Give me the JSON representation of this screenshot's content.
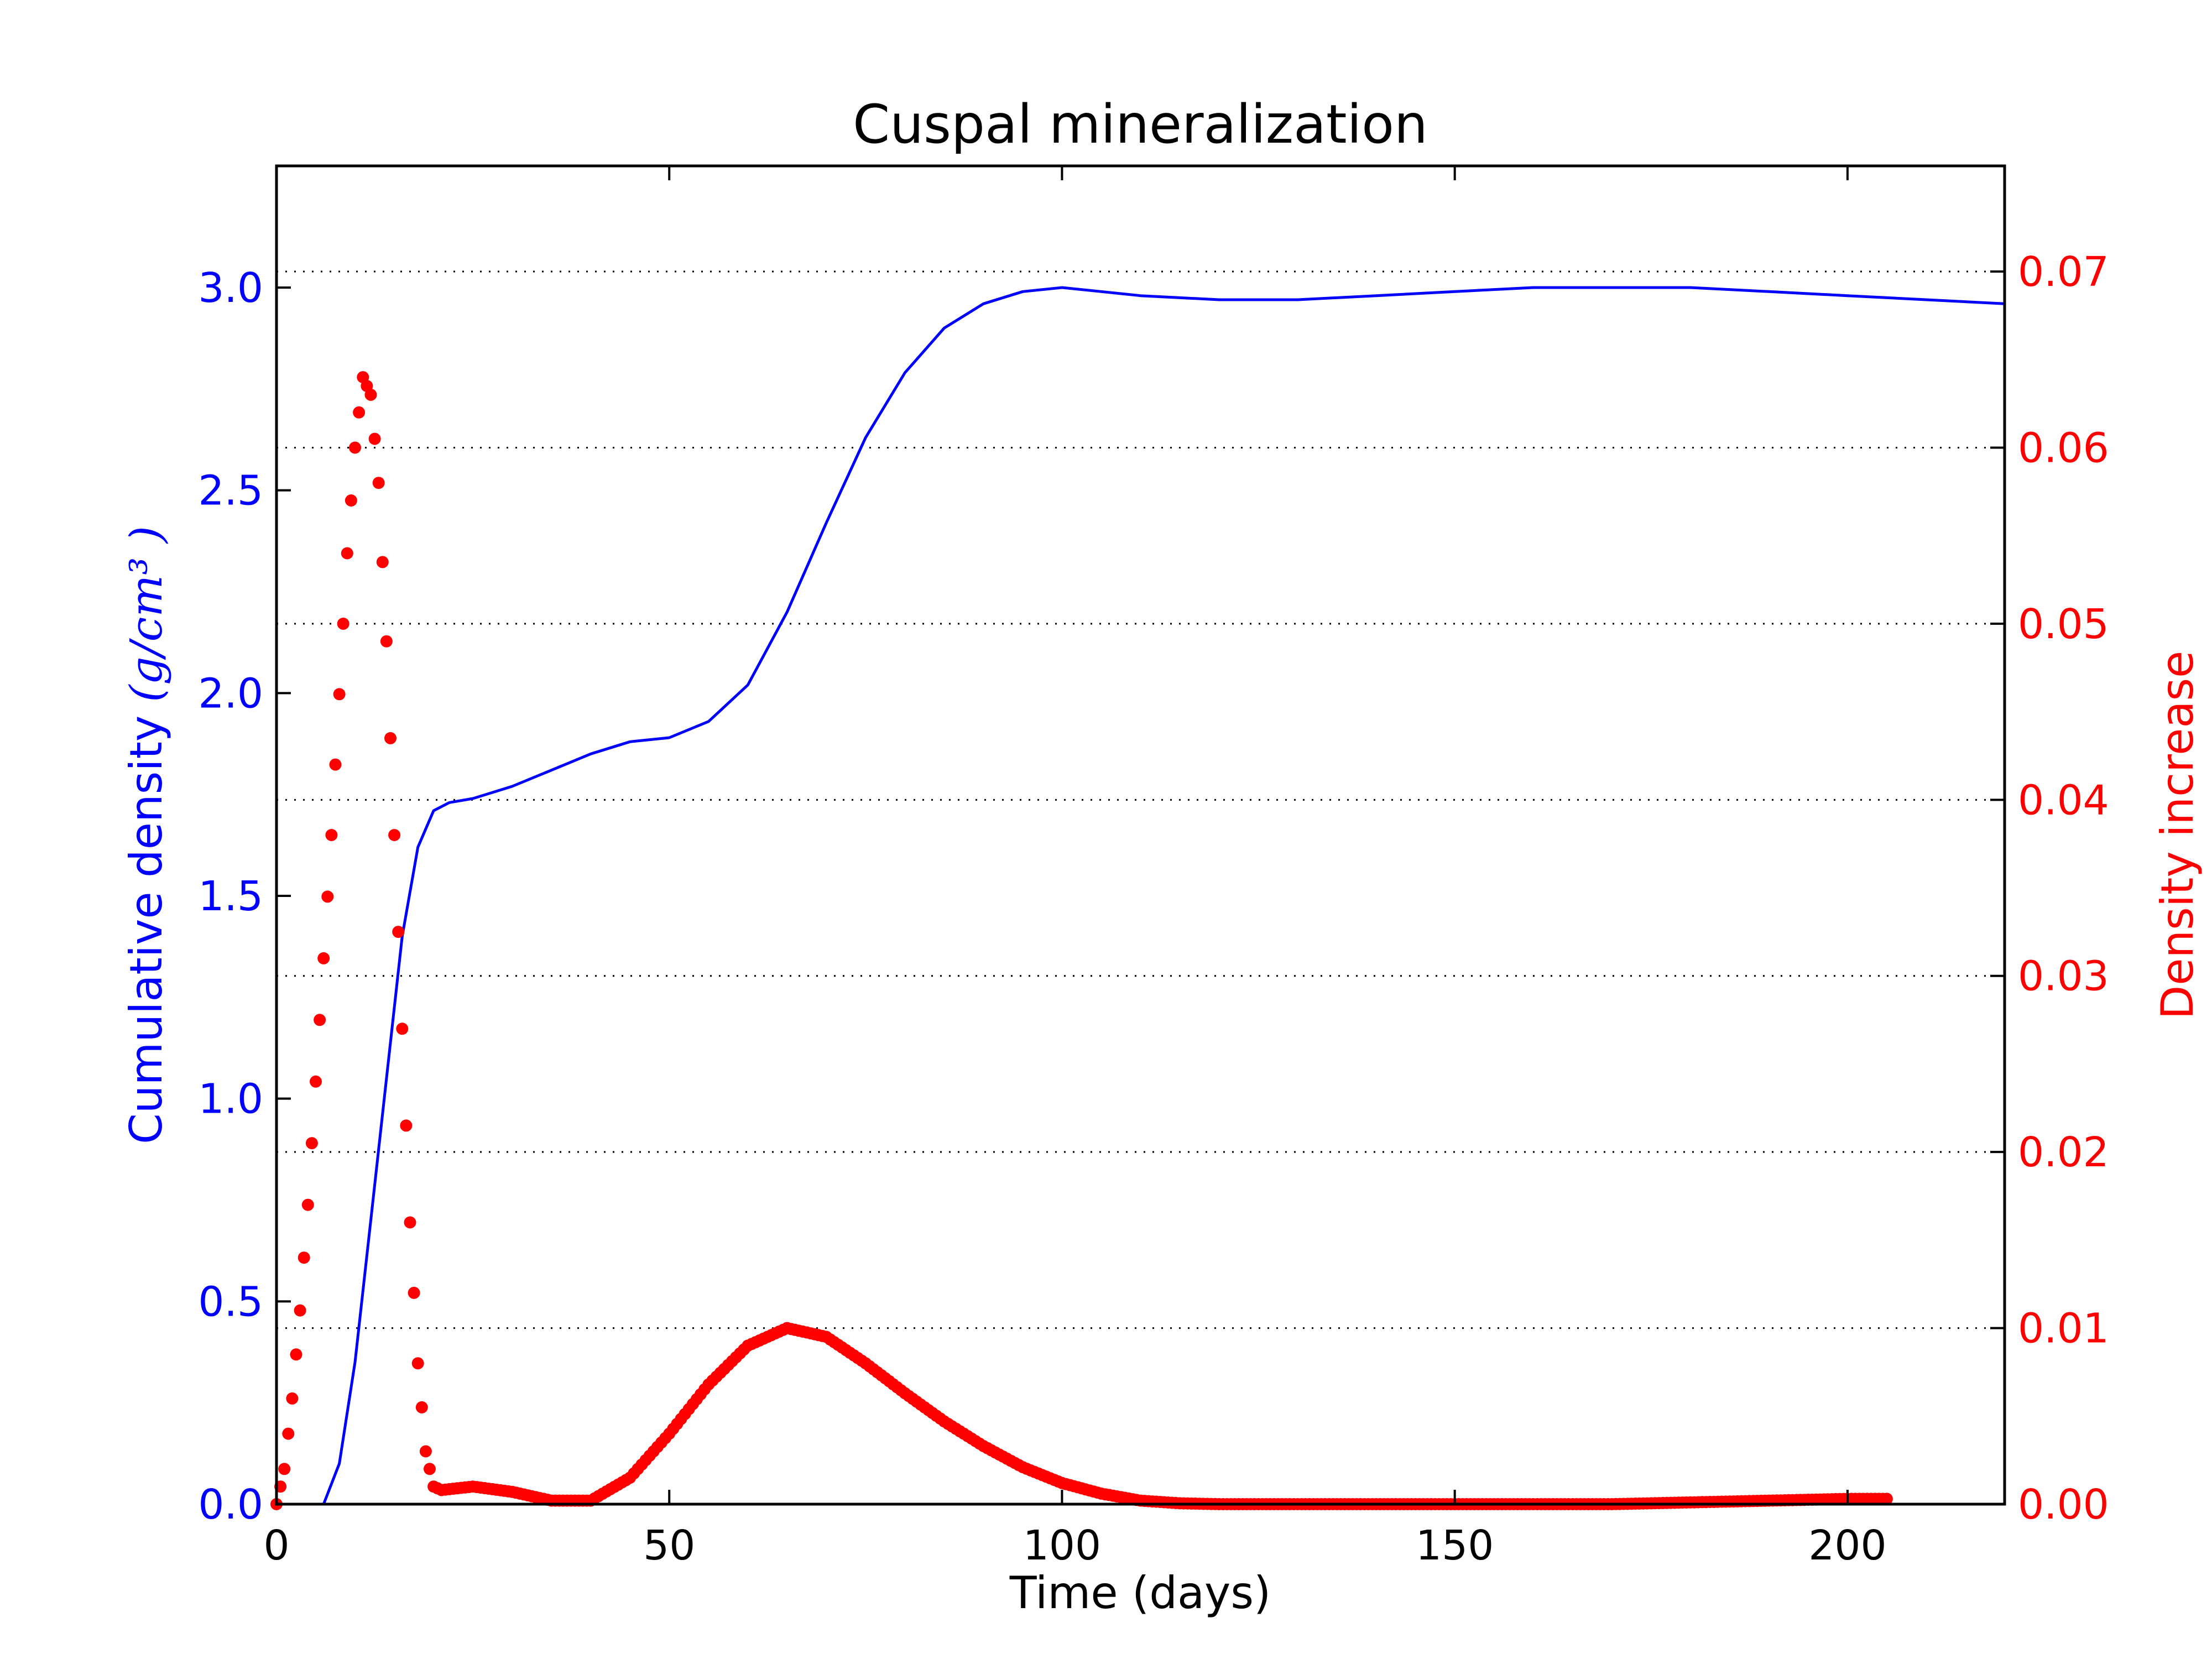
{
  "chart_data": {
    "type": "line",
    "title": "Cuspal mineralization",
    "xlabel": "Time (days)",
    "ylabel_left": "Cumulative density",
    "ylabel_left_unit": "(g/cm³ )",
    "ylabel_right": "Density increase",
    "xlim": [
      0,
      220
    ],
    "ylim_left": [
      0,
      3.3
    ],
    "ylim_right": [
      0,
      0.076
    ],
    "x_ticks": [
      "0",
      "50",
      "100",
      "150",
      "200"
    ],
    "y_left_ticks": [
      "0.0",
      "0.5",
      "1.0",
      "1.5",
      "2.0",
      "2.5",
      "3.0"
    ],
    "y_right_ticks": [
      "0.00",
      "0.01",
      "0.02",
      "0.03",
      "0.04",
      "0.05",
      "0.06",
      "0.07"
    ],
    "grid": "horizontal-dotted-right-axis",
    "colors": {
      "left": "#0000ff",
      "right": "#ff0000",
      "axes": "#000000",
      "grid": "#000000"
    },
    "series": [
      {
        "axis": "left",
        "style": "solid-line",
        "points": [
          [
            6,
            0
          ],
          [
            8,
            0.1
          ],
          [
            10,
            0.35
          ],
          [
            12,
            0.7
          ],
          [
            14,
            1.05
          ],
          [
            16,
            1.4
          ],
          [
            18,
            1.62
          ],
          [
            20,
            1.71
          ],
          [
            22,
            1.73
          ],
          [
            25,
            1.74
          ],
          [
            30,
            1.77
          ],
          [
            35,
            1.81
          ],
          [
            40,
            1.85
          ],
          [
            45,
            1.88
          ],
          [
            50,
            1.89
          ],
          [
            55,
            1.93
          ],
          [
            60,
            2.02
          ],
          [
            65,
            2.2
          ],
          [
            70,
            2.42
          ],
          [
            75,
            2.63
          ],
          [
            80,
            2.79
          ],
          [
            85,
            2.9
          ],
          [
            90,
            2.96
          ],
          [
            95,
            2.99
          ],
          [
            100,
            3.0
          ],
          [
            105,
            2.99
          ],
          [
            110,
            2.98
          ],
          [
            120,
            2.97
          ],
          [
            130,
            2.97
          ],
          [
            140,
            2.98
          ],
          [
            150,
            2.99
          ],
          [
            160,
            3.0
          ],
          [
            170,
            3.0
          ],
          [
            180,
            3.0
          ],
          [
            190,
            2.99
          ],
          [
            200,
            2.98
          ],
          [
            210,
            2.97
          ],
          [
            220,
            2.96
          ]
        ]
      },
      {
        "axis": "right",
        "style": "dotted-markers",
        "points": [
          [
            0,
            0.0
          ],
          [
            1,
            0.002
          ],
          [
            2,
            0.006
          ],
          [
            3,
            0.011
          ],
          [
            4,
            0.017
          ],
          [
            5,
            0.024
          ],
          [
            6,
            0.031
          ],
          [
            7,
            0.038
          ],
          [
            8,
            0.046
          ],
          [
            9,
            0.054
          ],
          [
            10,
            0.06
          ],
          [
            11,
            0.064
          ],
          [
            12,
            0.063
          ],
          [
            13,
            0.058
          ],
          [
            14,
            0.049
          ],
          [
            15,
            0.038
          ],
          [
            16,
            0.027
          ],
          [
            17,
            0.016
          ],
          [
            18,
            0.008
          ],
          [
            19,
            0.003
          ],
          [
            20,
            0.001
          ],
          [
            21,
            0.0008
          ],
          [
            25,
            0.001
          ],
          [
            30,
            0.0007
          ],
          [
            35,
            0.0002
          ],
          [
            40,
            0.0002
          ],
          [
            45,
            0.0015
          ],
          [
            50,
            0.004
          ],
          [
            55,
            0.0068
          ],
          [
            60,
            0.009
          ],
          [
            65,
            0.01
          ],
          [
            70,
            0.0095
          ],
          [
            75,
            0.008
          ],
          [
            80,
            0.0063
          ],
          [
            85,
            0.0047
          ],
          [
            90,
            0.0033
          ],
          [
            95,
            0.0021
          ],
          [
            100,
            0.0012
          ],
          [
            105,
            0.0006
          ],
          [
            110,
            0.0002
          ],
          [
            115,
            5e-05
          ],
          [
            120,
            0.0
          ],
          [
            130,
            0.0
          ],
          [
            140,
            0.0
          ],
          [
            150,
            0.0
          ],
          [
            160,
            0.0
          ],
          [
            170,
            0.0
          ],
          [
            180,
            0.0001
          ],
          [
            190,
            0.0002
          ],
          [
            200,
            0.0003
          ],
          [
            205,
            0.0003
          ]
        ]
      }
    ]
  }
}
